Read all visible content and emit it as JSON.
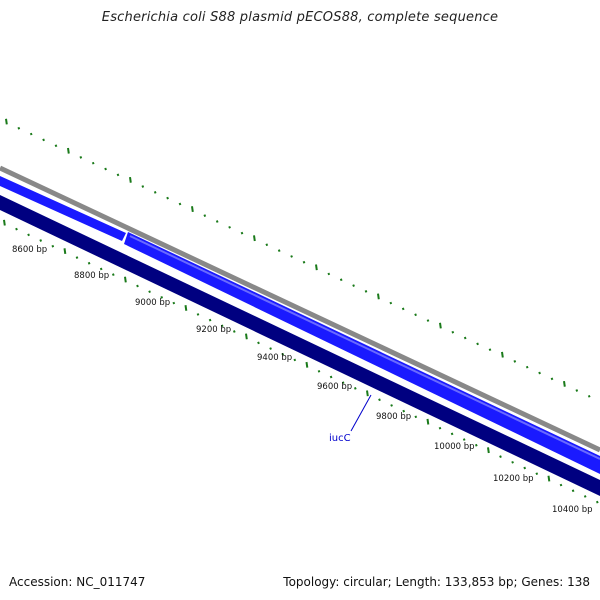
{
  "title": "Escherichia coli S88 plasmid pECOS88, complete sequence",
  "footer": {
    "accession": "Accession: NC_011747",
    "info": "Topology: circular; Length: 133,853 bp; Genes: 138"
  },
  "ticks": [
    "8600 bp",
    "8800 bp",
    "9000 bp",
    "9200 bp",
    "9400 bp",
    "9600 bp",
    "9800 bp",
    "10000 bp",
    "10200 bp",
    "10400 bp"
  ],
  "genes": [
    {
      "name": "iucC",
      "color": "#0000cc"
    }
  ],
  "colors": {
    "gc_skew": "#1a7a1a",
    "backbone": "#888888",
    "forward_strand": "#1a1aff",
    "reverse_strand": "#000080",
    "gene_label": "#0000cc"
  }
}
